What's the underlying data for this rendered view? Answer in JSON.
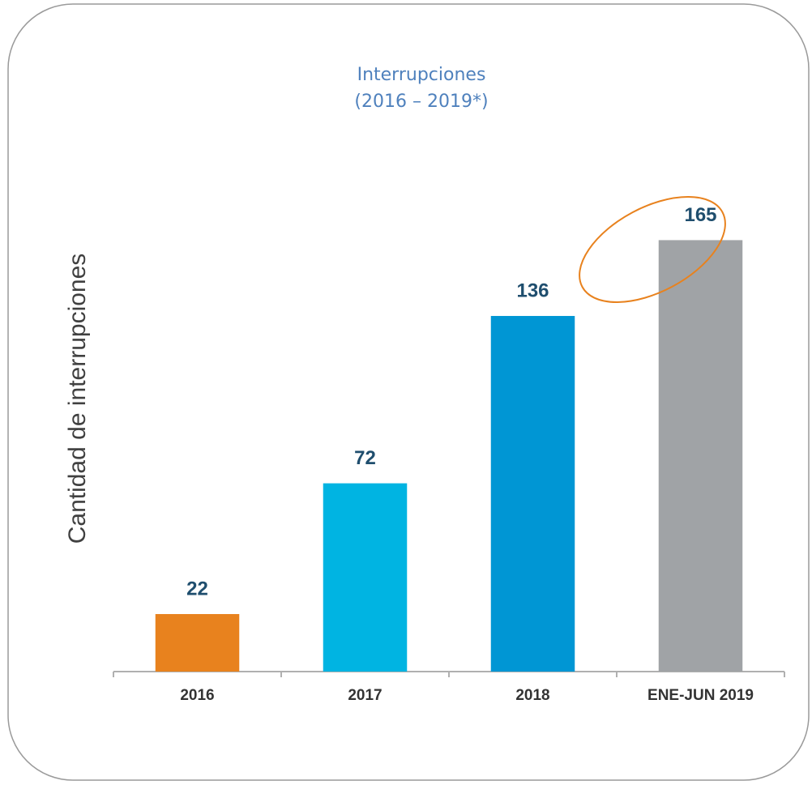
{
  "chart_data": {
    "type": "bar",
    "title": "Interrupciones",
    "subtitle": "(2016 – 2019*)",
    "y_label": "Cantidad de interrupciones",
    "categories": [
      "2016",
      "2017",
      "2018",
      "ENE-JUN 2019"
    ],
    "values": [
      22,
      72,
      136,
      165
    ],
    "colors": [
      "#e8821e",
      "#00b4e2",
      "#0096d4",
      "#a0a3a6"
    ],
    "ylim": [
      0,
      180
    ]
  }
}
